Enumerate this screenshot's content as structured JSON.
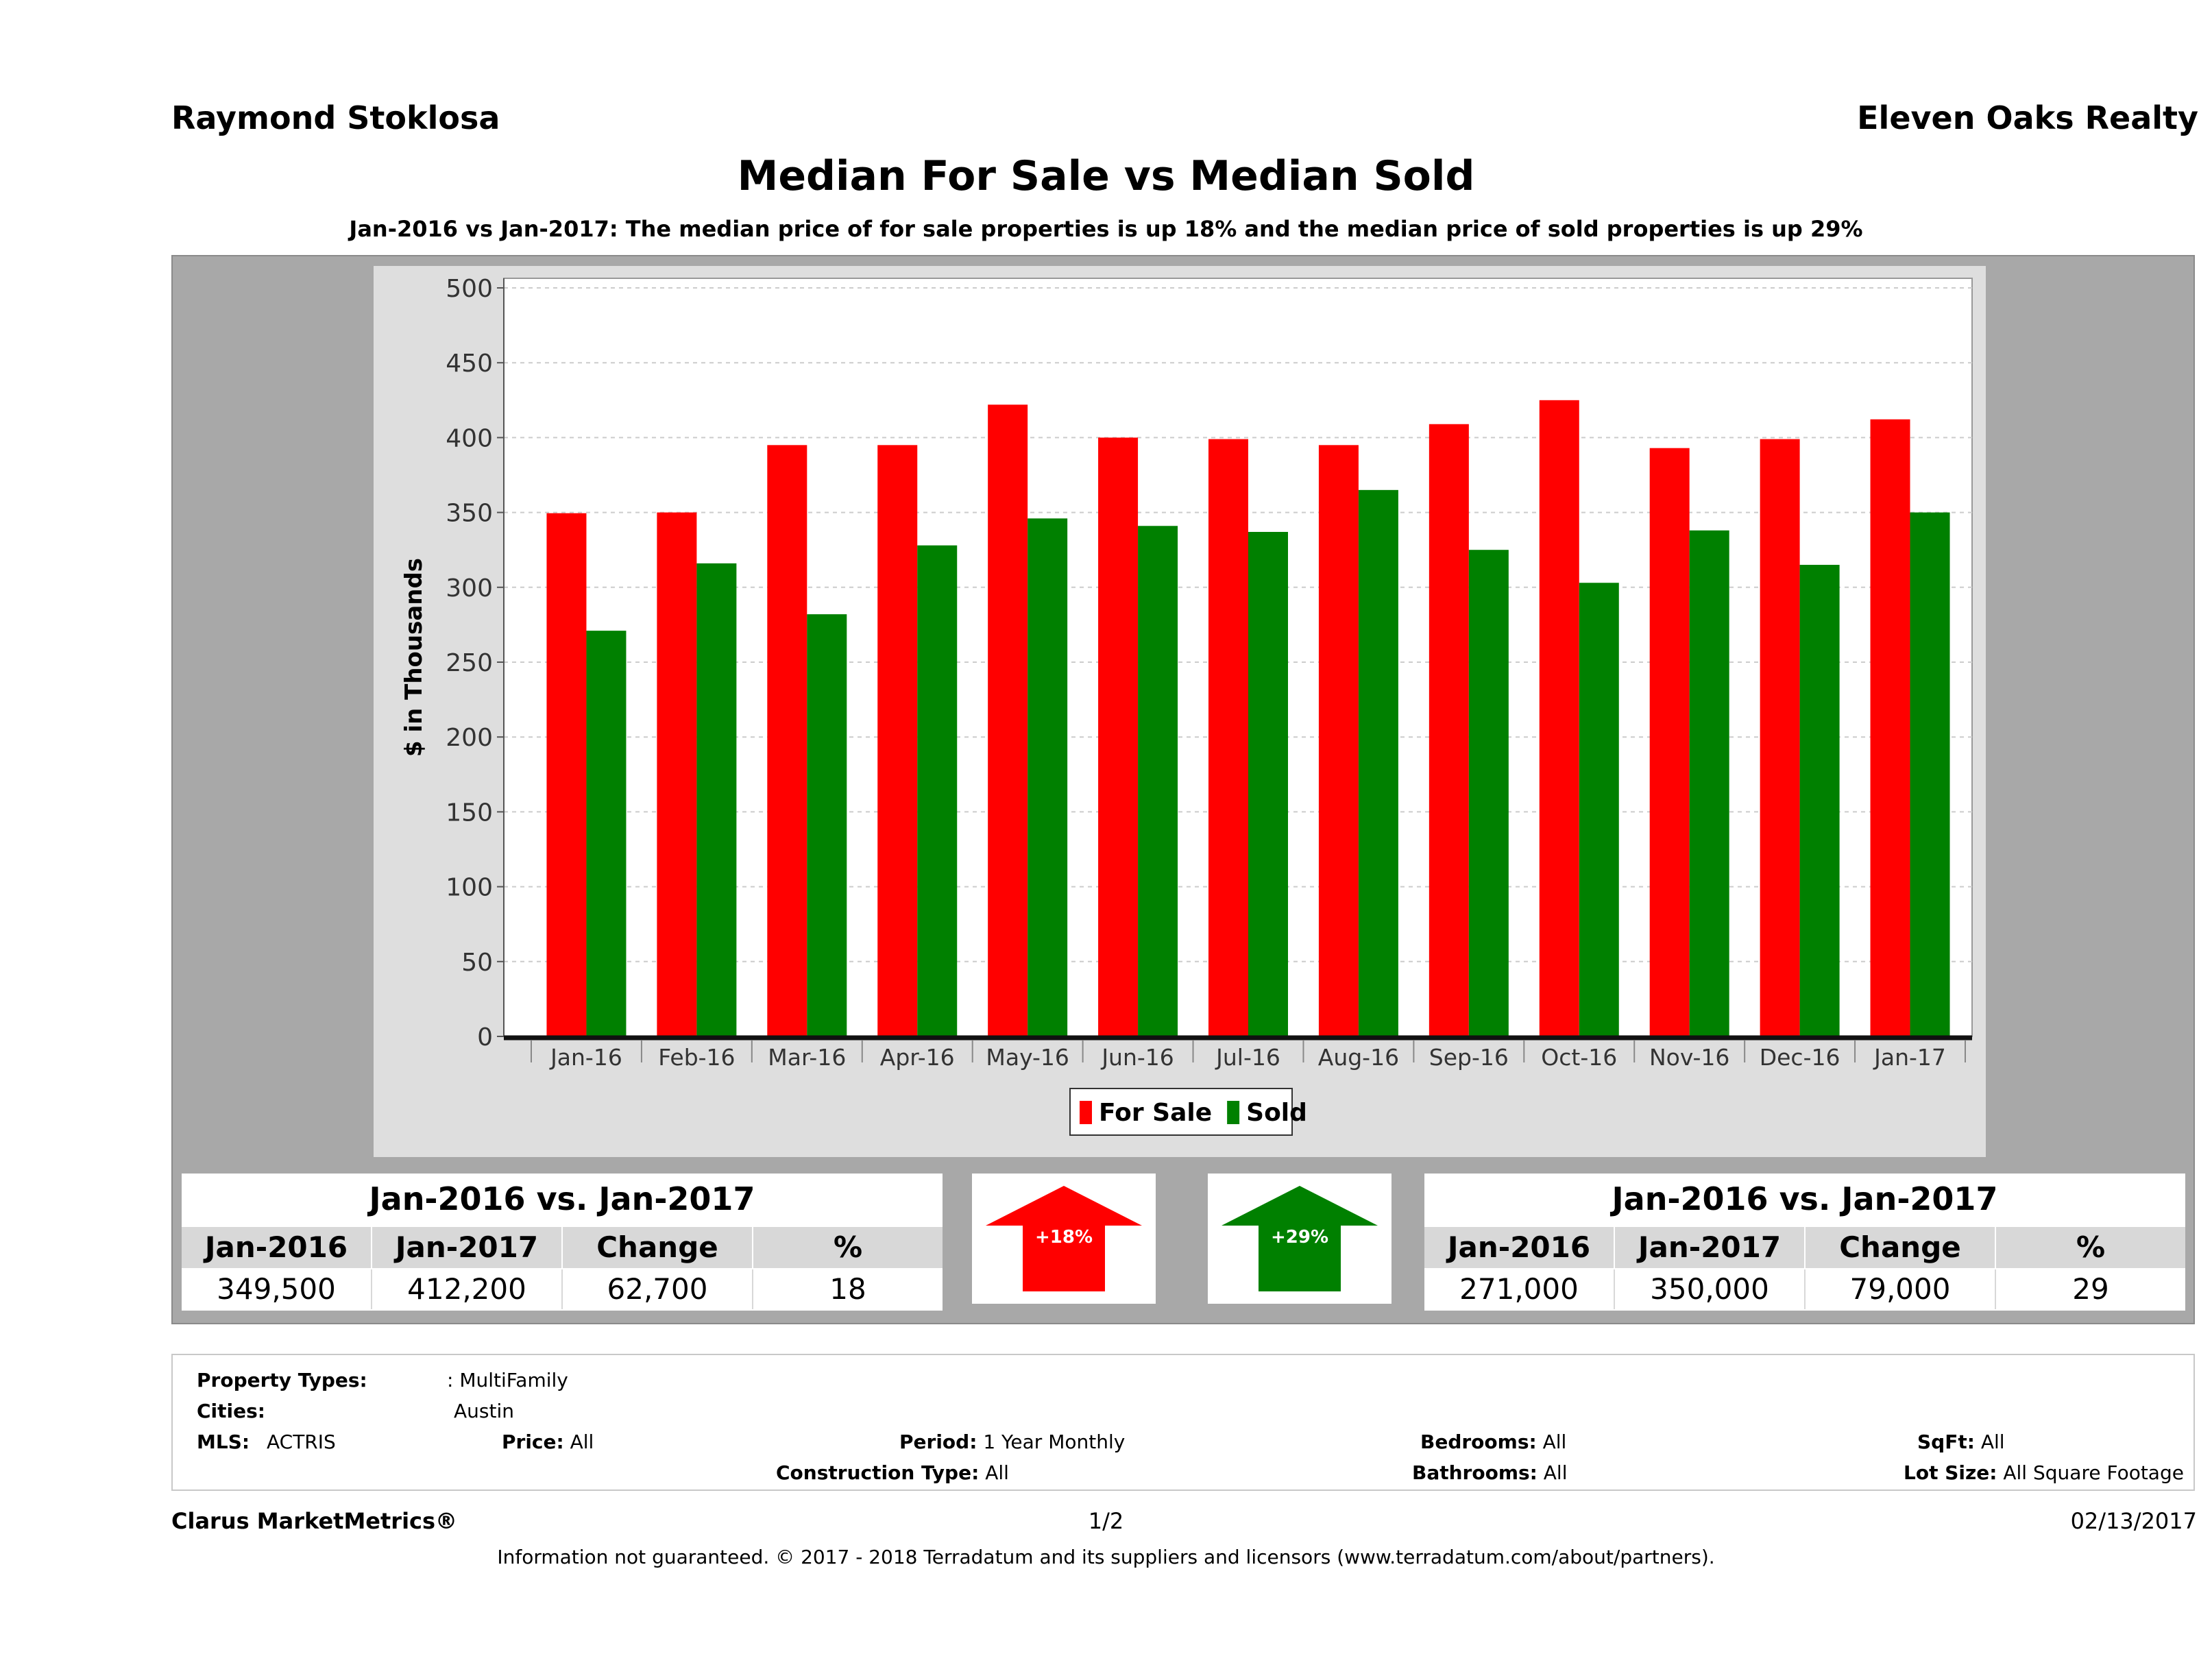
{
  "header": {
    "agent": "Raymond Stoklosa",
    "company": "Eleven Oaks Realty",
    "title": "Median For Sale vs Median Sold",
    "subtitle": "Jan-2016 vs Jan-2017: The median price of for sale properties is up 18% and the median price of sold properties is up 29%"
  },
  "chart_data": {
    "type": "bar",
    "categories": [
      "Jan-16",
      "Feb-16",
      "Mar-16",
      "Apr-16",
      "May-16",
      "Jun-16",
      "Jul-16",
      "Aug-16",
      "Sep-16",
      "Oct-16",
      "Nov-16",
      "Dec-16",
      "Jan-17"
    ],
    "series": [
      {
        "name": "For Sale",
        "color": "#ff0000",
        "values": [
          349.5,
          350,
          395,
          395,
          422,
          400,
          399,
          395,
          409,
          425,
          393,
          399,
          412.2
        ]
      },
      {
        "name": "Sold",
        "color": "#008000",
        "values": [
          271,
          316,
          282,
          328,
          346,
          341,
          337,
          365,
          325,
          303,
          338,
          315,
          350
        ]
      }
    ],
    "ylabel": "$ in Thousands",
    "ylim": [
      0,
      500
    ],
    "yticks": [
      "0",
      "50",
      "100",
      "150",
      "200",
      "250",
      "300",
      "350",
      "400",
      "450",
      "500"
    ],
    "grid": true,
    "legend": "bottom-center"
  },
  "for_sale_stats": {
    "title": "Jan-2016 vs. Jan-2017",
    "headers": [
      "Jan-2016",
      "Jan-2017",
      "Change",
      "%"
    ],
    "values": [
      "349,500",
      "412,200",
      "62,700",
      "18"
    ],
    "arrow_label": "+18%",
    "arrow_color": "#ff0000"
  },
  "sold_stats": {
    "title": "Jan-2016 vs. Jan-2017",
    "headers": [
      "Jan-2016",
      "Jan-2017",
      "Change",
      "%"
    ],
    "values": [
      "271,000",
      "350,000",
      "79,000",
      "29"
    ],
    "arrow_label": "+29%",
    "arrow_color": "#008000"
  },
  "criteria": {
    "property_types_label": "Property Types:",
    "property_types_value": ": MultiFamily",
    "cities_label": "Cities:",
    "cities_value": "Austin",
    "mls_label": "MLS:",
    "mls_value": "ACTRIS",
    "price_label": "Price:",
    "price_value": "All",
    "period_label": "Period:",
    "period_value": "1 Year Monthly",
    "construction_label": "Construction Type:",
    "construction_value": "All",
    "bedrooms_label": "Bedrooms:",
    "bedrooms_value": "All",
    "bathrooms_label": "Bathrooms:",
    "bathrooms_value": "All",
    "sqft_label": "SqFt:",
    "sqft_value": "All",
    "lot_label": "Lot Size:",
    "lot_value": "All Square Footage"
  },
  "footer": {
    "brand": "Clarus MarketMetrics®",
    "page": "1/2",
    "date": "02/13/2017",
    "disclaimer": "Information not guaranteed. © 2017 - 2018 Terradatum and its suppliers and licensors (www.terradatum.com/about/partners)."
  }
}
